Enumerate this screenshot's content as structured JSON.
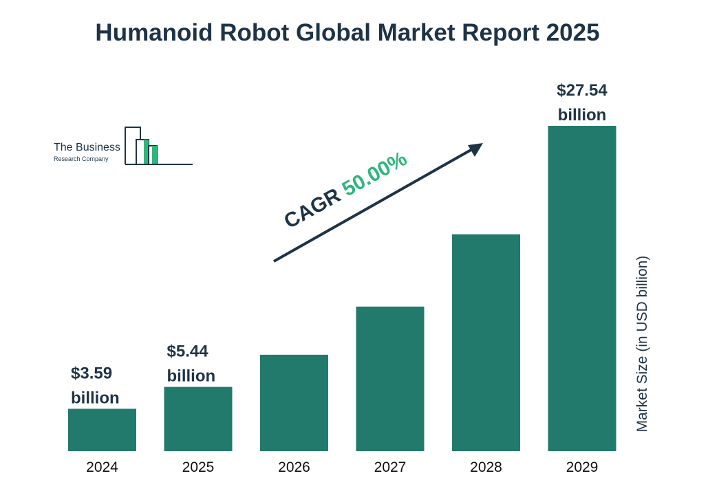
{
  "title": "Humanoid Robot Global Market Report 2025",
  "logo": {
    "line1": "The Business",
    "line2": "Research Company",
    "icon": "building-bars-icon"
  },
  "cagr": {
    "label": "CAGR",
    "value": "50.00%"
  },
  "colors": {
    "bar": "#217a6b",
    "text": "#1e3346",
    "accent": "#2eb67d"
  },
  "chart_data": {
    "type": "bar",
    "title": "Humanoid Robot Global Market Report 2025",
    "categories": [
      "2024",
      "2025",
      "2026",
      "2027",
      "2028",
      "2029"
    ],
    "values": [
      3.59,
      5.44,
      8.16,
      12.24,
      18.36,
      27.54
    ],
    "value_labels": [
      [
        "$3.59",
        "billion"
      ],
      [
        "$5.44",
        "billion"
      ],
      null,
      null,
      null,
      [
        "$27.54",
        "billion"
      ]
    ],
    "xlabel": "",
    "ylabel": "Market Size (in USD billion)",
    "ylim": [
      0,
      27.54
    ],
    "grid": false,
    "legend": "none"
  }
}
